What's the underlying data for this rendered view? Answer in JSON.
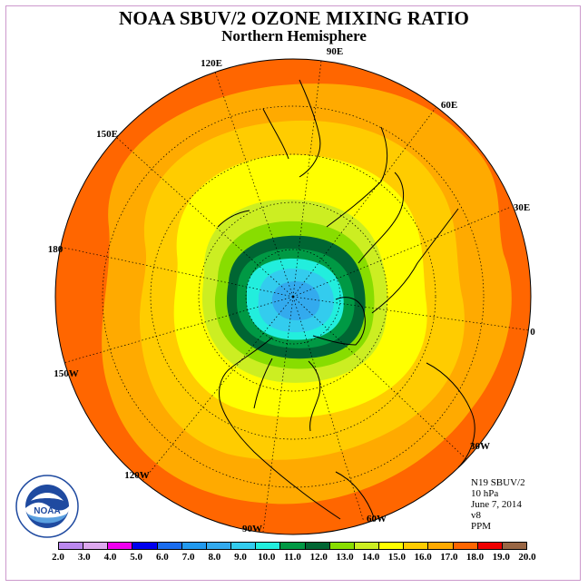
{
  "title": "NOAA SBUV/2 OZONE MIXING RATIO",
  "subtitle": "Northern Hemisphere",
  "map": {
    "projection": "north-polar-stereographic",
    "longitude_labels": [
      "90E",
      "60E",
      "30E",
      "0",
      "30W",
      "60W",
      "90W",
      "120W",
      "150W",
      "180",
      "150E",
      "120E"
    ],
    "field_description_note": null
  },
  "info": {
    "satellite": "N19 SBUV/2",
    "level": "10 hPa",
    "date": "June 7, 2014",
    "version": "v8",
    "units": "PPM"
  },
  "logo": {
    "text": "NOAA",
    "ring_text": "NATIONAL OCEANIC AND ATMOSPHERIC ADMINISTRATION · U.S. DEPARTMENT OF COMMERCE"
  },
  "colorbar": {
    "labels": [
      "2.0",
      "3.0",
      "4.0",
      "5.0",
      "6.0",
      "7.0",
      "8.0",
      "9.0",
      "10.0",
      "11.0",
      "12.0",
      "13.0",
      "14.0",
      "15.0",
      "16.0",
      "17.0",
      "18.0",
      "19.0",
      "20.0"
    ],
    "colors": [
      "#bb88ee",
      "#dda8ee",
      "#ee00ee",
      "#0000ee",
      "#1a6cee",
      "#2299ee",
      "#33aaee",
      "#33ccee",
      "#22eedd",
      "#009944",
      "#006633",
      "#88dd00",
      "#ccee22",
      "#ffff00",
      "#ffcc00",
      "#ffaa00",
      "#ff6600",
      "#ee0000",
      "#996644"
    ]
  }
}
